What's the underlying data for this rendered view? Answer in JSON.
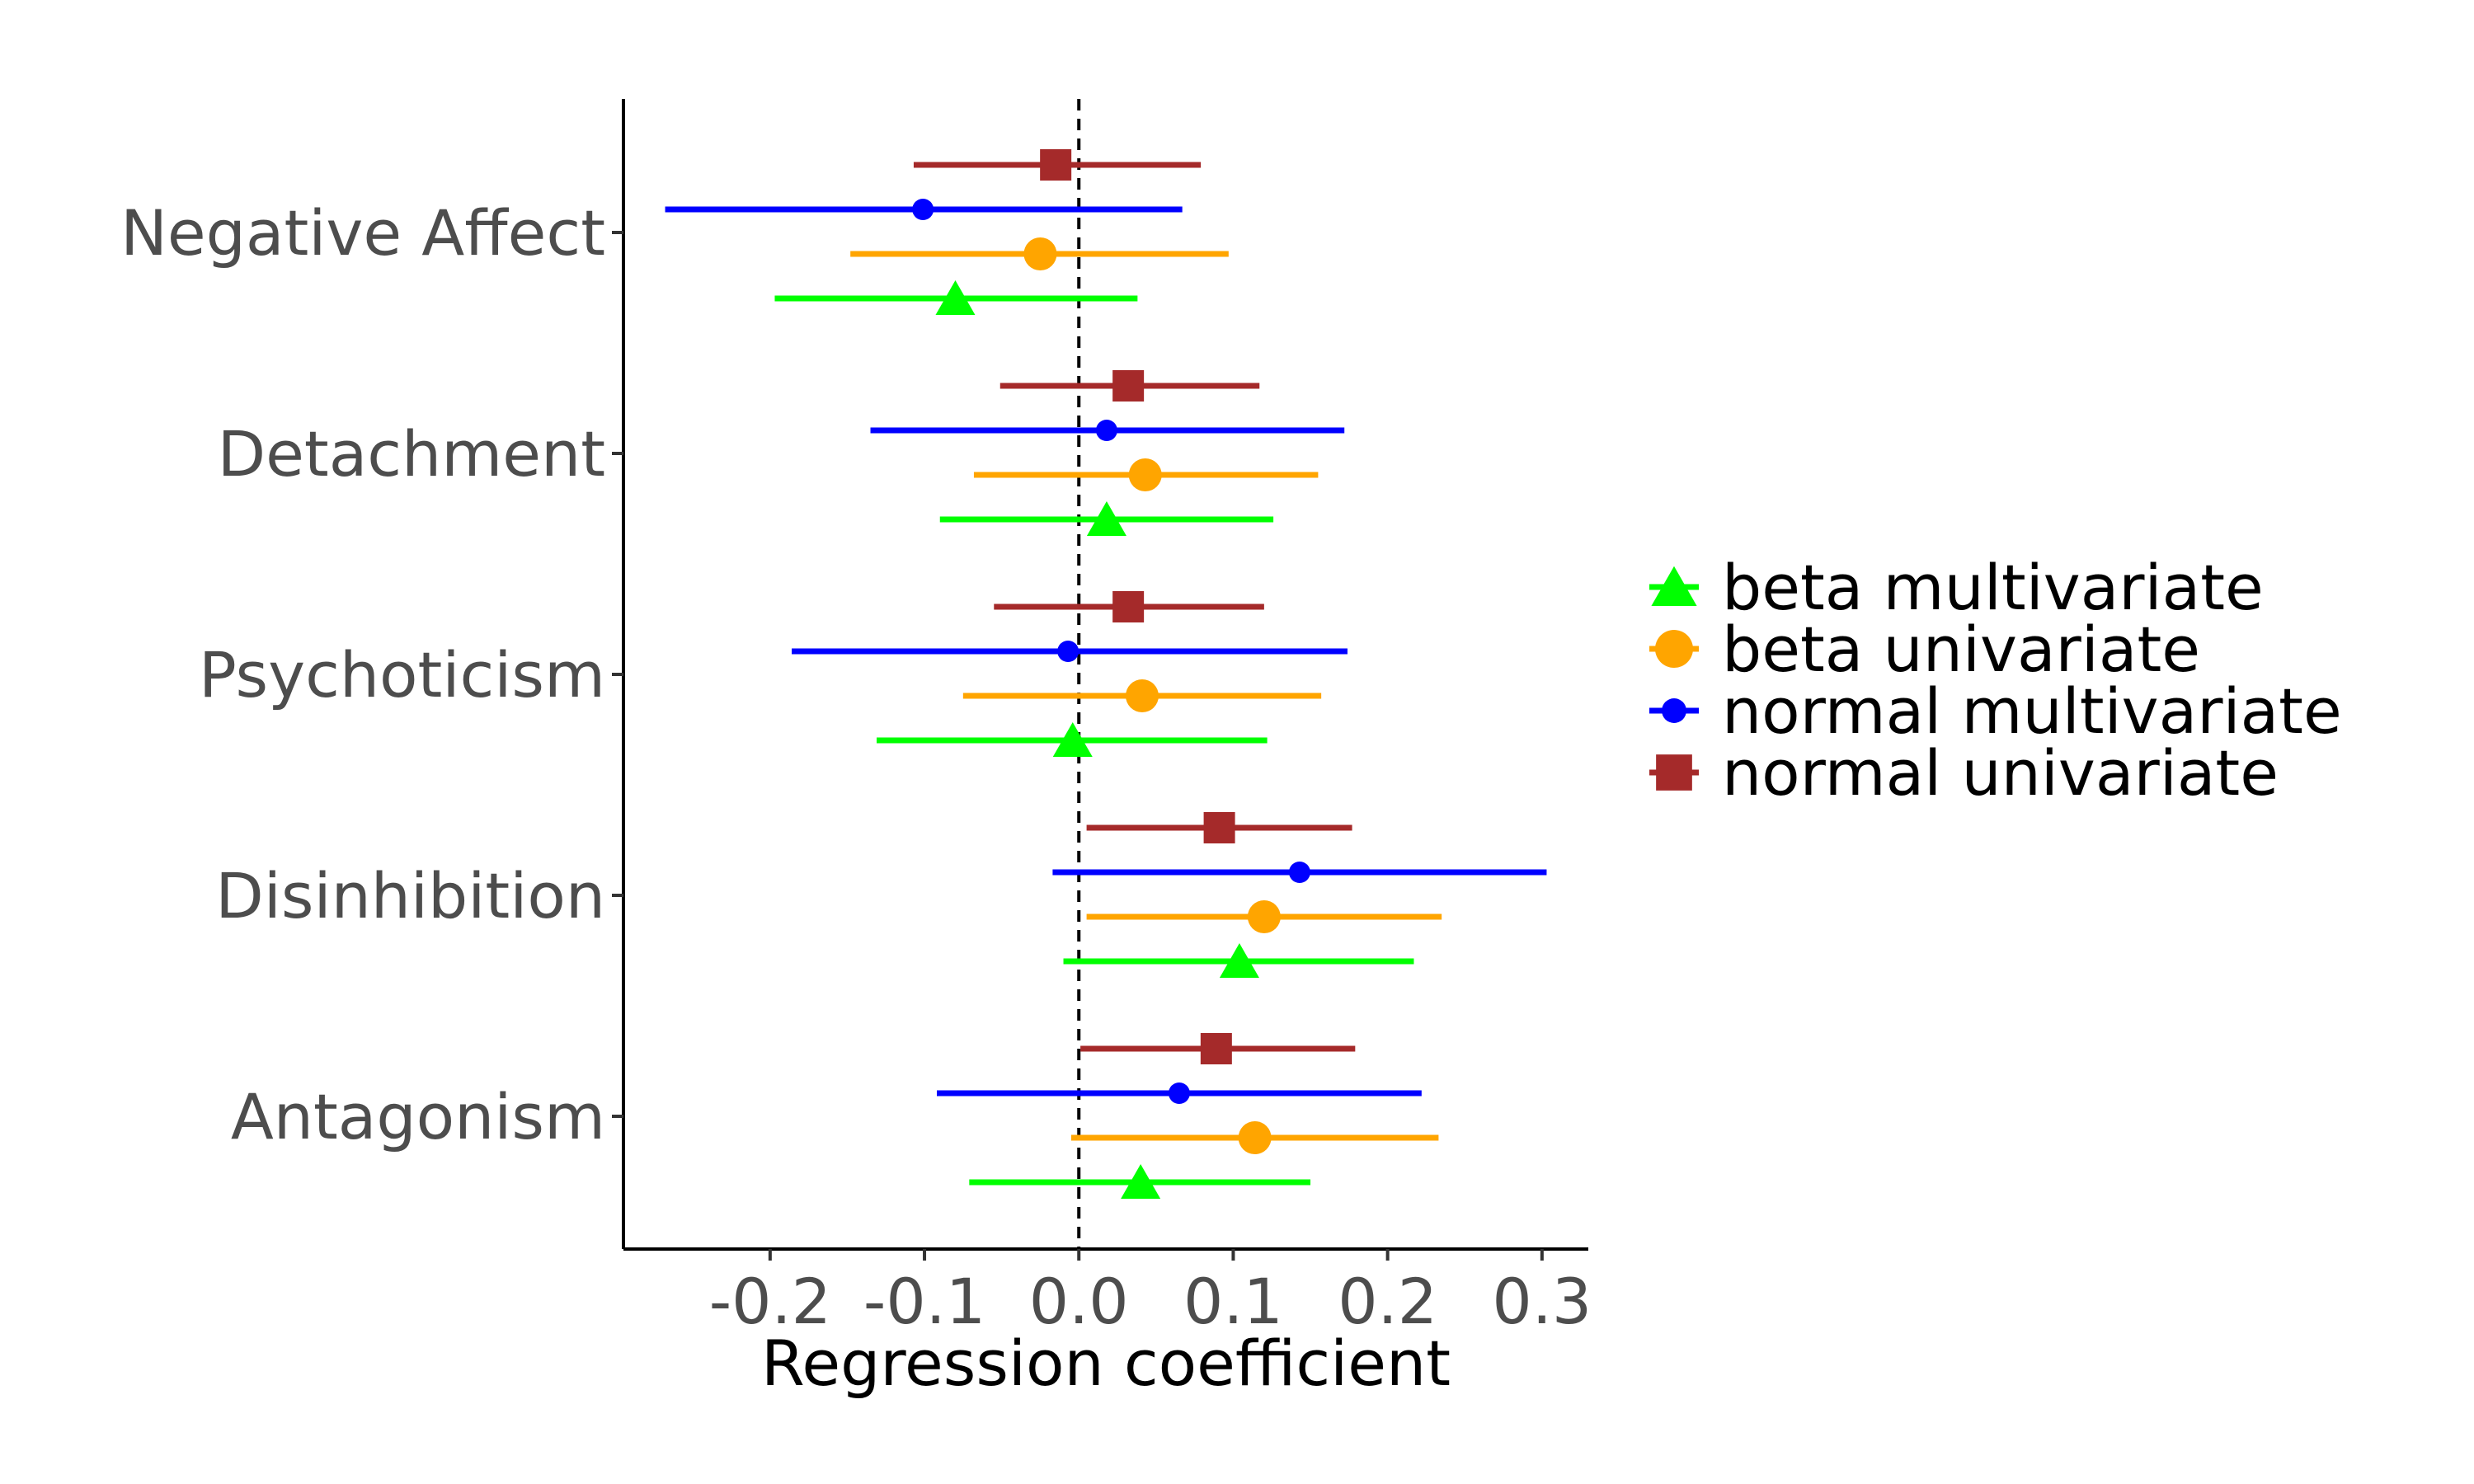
{
  "chart_data": {
    "type": "forest",
    "xlabel": "Regression coefficient",
    "xlim": [
      -0.295,
      0.33
    ],
    "x_ticks": [
      "-0.2",
      "-0.1",
      "0.0",
      "0.1",
      "0.2",
      "0.3"
    ],
    "x_tick_values": [
      -0.2,
      -0.1,
      0.0,
      0.1,
      0.2,
      0.3
    ],
    "reference_line": 0,
    "grid": false,
    "legend_position": "right",
    "categories": [
      "Negative Affect",
      "Detachment",
      "Psychoticism",
      "Disinhibition",
      "Antagonism"
    ],
    "series": [
      {
        "name": "normal univariate",
        "color": "#a52a2a",
        "marker": "square",
        "estimate": [
          -0.015,
          0.032,
          0.032,
          0.091,
          0.089
        ],
        "lower": [
          -0.107,
          -0.051,
          -0.055,
          0.005,
          0.001
        ],
        "upper": [
          0.079,
          0.117,
          0.12,
          0.177,
          0.179
        ]
      },
      {
        "name": "normal multivariate",
        "color": "#0000ff",
        "marker": "circle-small",
        "estimate": [
          -0.101,
          0.018,
          -0.007,
          0.143,
          0.065
        ],
        "lower": [
          -0.268,
          -0.135,
          -0.186,
          -0.017,
          -0.092
        ],
        "upper": [
          0.067,
          0.172,
          0.174,
          0.303,
          0.222
        ]
      },
      {
        "name": "beta univariate",
        "color": "#ffa500",
        "marker": "circle",
        "estimate": [
          -0.025,
          0.043,
          0.041,
          0.12,
          0.114
        ],
        "lower": [
          -0.148,
          -0.068,
          -0.075,
          0.005,
          -0.005
        ],
        "upper": [
          0.097,
          0.155,
          0.157,
          0.235,
          0.233
        ]
      },
      {
        "name": "beta multivariate",
        "color": "#00ff00",
        "marker": "triangle",
        "estimate": [
          -0.08,
          0.018,
          -0.004,
          0.104,
          0.04
        ],
        "lower": [
          -0.197,
          -0.09,
          -0.131,
          -0.01,
          -0.071
        ],
        "upper": [
          0.038,
          0.126,
          0.122,
          0.217,
          0.15
        ]
      }
    ],
    "legend_order": [
      "beta multivariate",
      "beta univariate",
      "normal multivariate",
      "normal univariate"
    ]
  }
}
